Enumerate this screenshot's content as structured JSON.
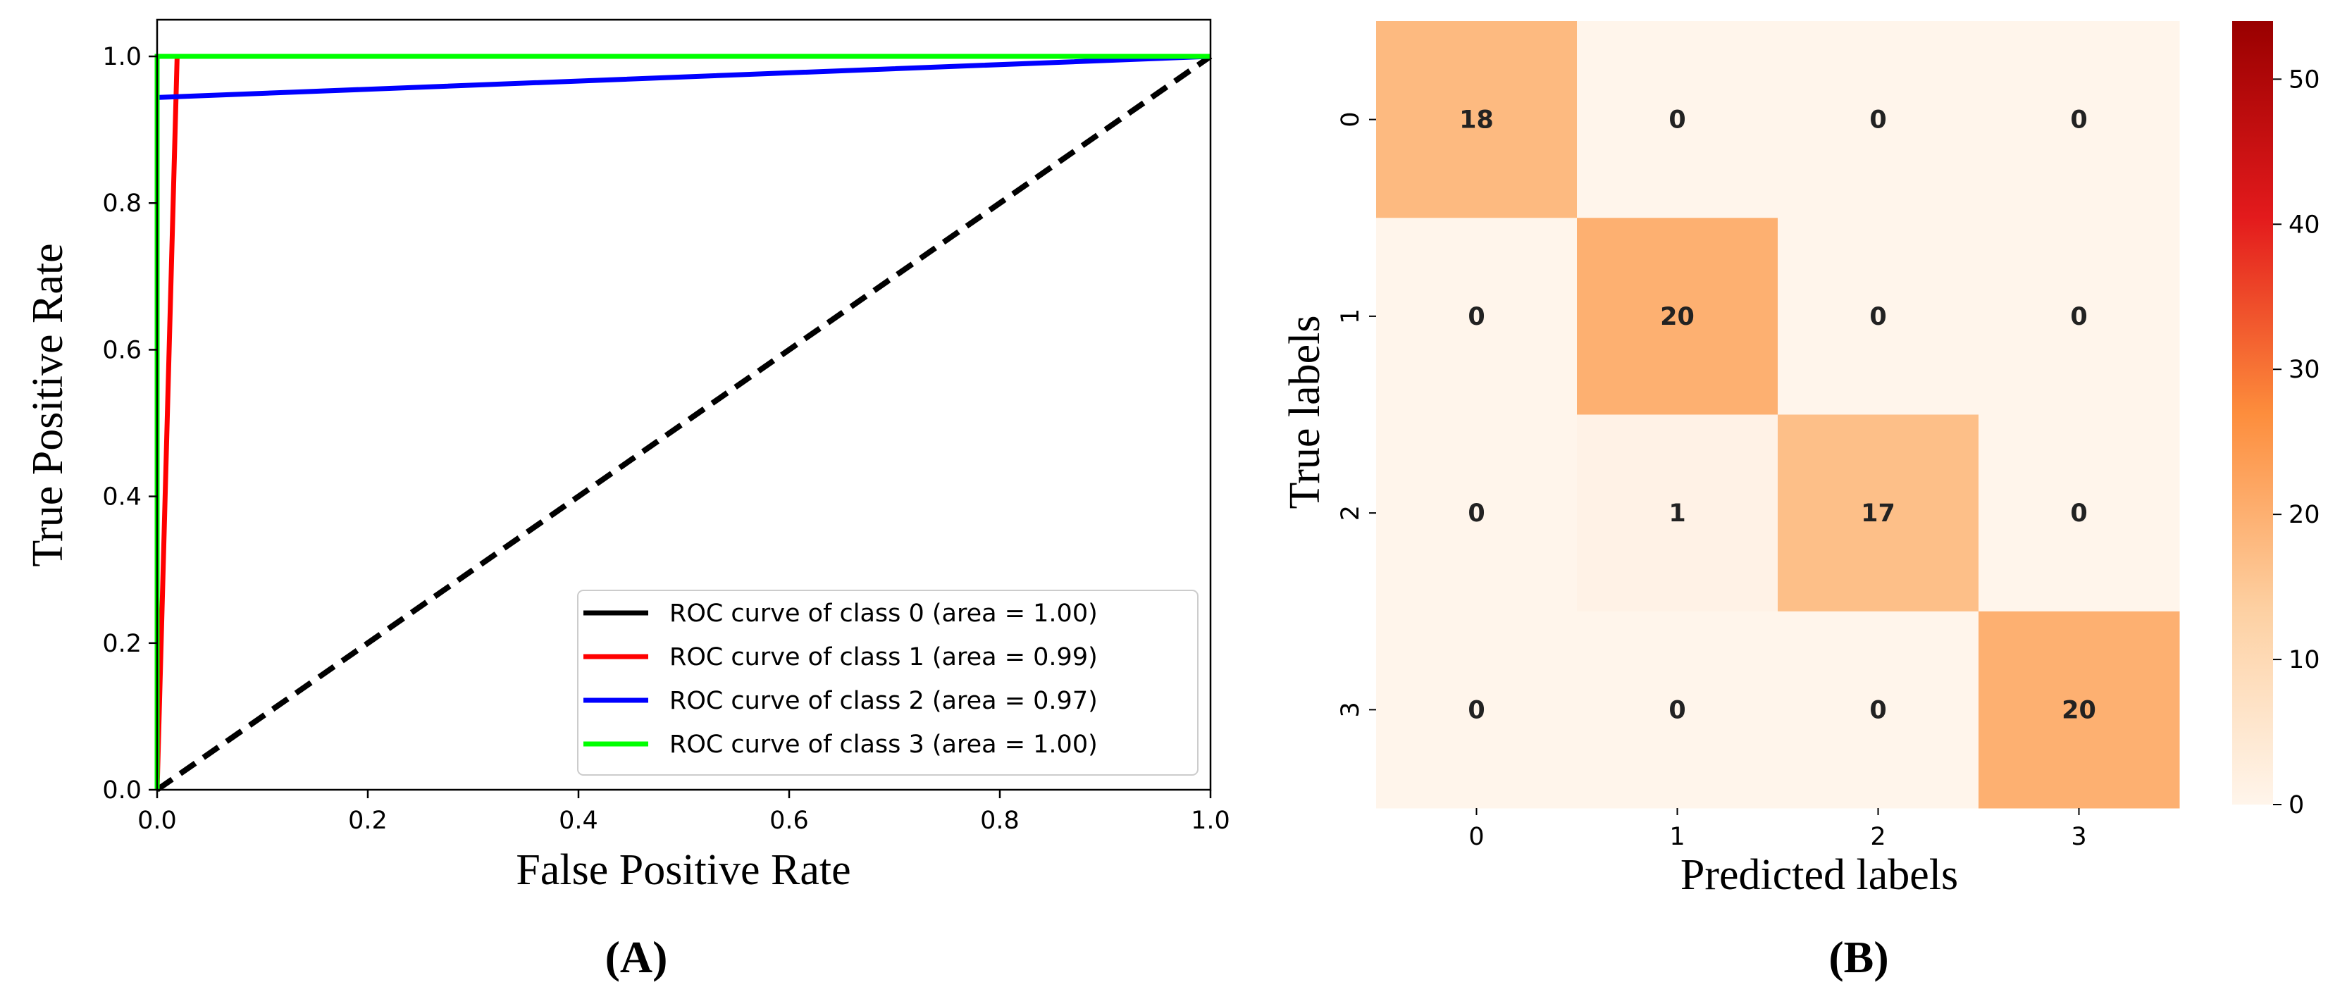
{
  "chart_data": [
    {
      "type": "line",
      "panel_label": "(A)",
      "xlabel": "False Positive Rate",
      "ylabel": "True Positive Rate",
      "xlim": [
        0.0,
        1.0
      ],
      "ylim": [
        0.0,
        1.05
      ],
      "xticks": [
        "0.0",
        "0.2",
        "0.4",
        "0.6",
        "0.8",
        "1.0"
      ],
      "yticks": [
        "0.0",
        "0.2",
        "0.4",
        "0.6",
        "0.8",
        "1.0"
      ],
      "legend_position": "lower-right",
      "series": [
        {
          "name": "ROC curve of class 0 (area = 1.00)",
          "color": "#000000",
          "x": [
            0.0,
            0.0,
            1.0
          ],
          "y": [
            0.0,
            1.0,
            1.0
          ]
        },
        {
          "name": "ROC curve of class 1 (area = 0.99)",
          "color": "#ff0000",
          "x": [
            0.0,
            0.019,
            1.0
          ],
          "y": [
            0.0,
            1.0,
            1.0
          ]
        },
        {
          "name": "ROC curve of class 2 (area = 0.97)",
          "color": "#0000ff",
          "x": [
            0.0,
            0.0,
            1.0
          ],
          "y": [
            0.0,
            0.944,
            1.0
          ]
        },
        {
          "name": "ROC curve of class 3 (area = 1.00)",
          "color": "#00ff00",
          "x": [
            0.0,
            0.0,
            1.0
          ],
          "y": [
            0.0,
            1.0,
            1.0
          ]
        }
      ],
      "reference_line": {
        "color": "#000000",
        "style": "dashed",
        "x": [
          0.0,
          1.0
        ],
        "y": [
          0.0,
          1.0
        ]
      }
    },
    {
      "type": "heatmap",
      "panel_label": "(B)",
      "xlabel": "Predicted labels",
      "ylabel": "True labels",
      "x_categories": [
        "0",
        "1",
        "2",
        "3"
      ],
      "y_categories": [
        "0",
        "1",
        "2",
        "3"
      ],
      "matrix": [
        [
          18,
          0,
          0,
          0
        ],
        [
          0,
          20,
          0,
          0
        ],
        [
          0,
          1,
          17,
          0
        ],
        [
          0,
          0,
          0,
          20
        ]
      ],
      "colorbar": {
        "min": 0,
        "max": 54,
        "ticks": [
          "0",
          "10",
          "20",
          "30",
          "40",
          "50"
        ],
        "colormap": "Oranges-to-dark-red",
        "stops": [
          "#fff5eb",
          "#fdd0a2",
          "#fd8d3c",
          "#e31a1c",
          "#990000"
        ]
      }
    }
  ]
}
